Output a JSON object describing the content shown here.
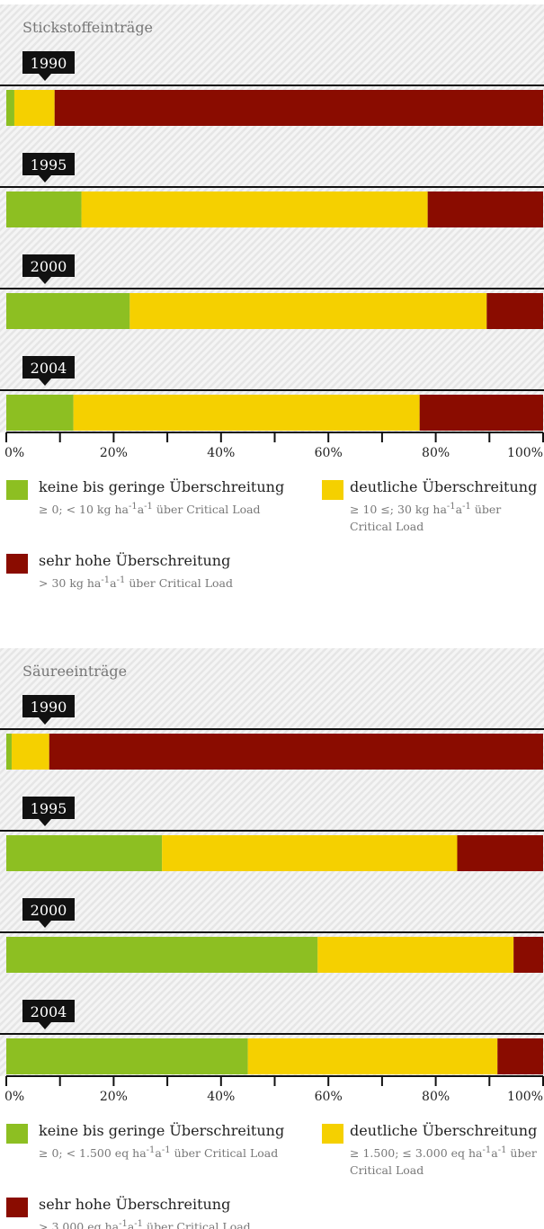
{
  "chart_data": [
    {
      "type": "bar",
      "stacked": true,
      "orientation": "horizontal",
      "title": "Stickstoffeinträge",
      "categories": [
        "1990",
        "1995",
        "2000",
        "2004"
      ],
      "series": [
        {
          "name": "keine bis geringe Überschreitung",
          "color": "#8dbf22",
          "values": [
            1.5,
            14,
            23,
            12.5
          ],
          "note": [
            "≥ 0; < 10 kg ha",
            "-1",
            "a",
            "-1",
            " über Critical Load"
          ]
        },
        {
          "name": "deutliche Überschreitung",
          "color": "#f5d000",
          "values": [
            7.5,
            64.5,
            66.5,
            64.5
          ],
          "note": [
            "≥ 10 ≤; 30 kg ha",
            "-1",
            "a",
            "-1",
            " über Critical Load"
          ]
        },
        {
          "name": "sehr hohe Überschreitung",
          "color": "#8a0c00",
          "values": [
            91,
            21.5,
            10.5,
            23
          ],
          "note": [
            "> 30 kg ha",
            "-1",
            "a",
            "-1",
            " über Critical Load"
          ]
        }
      ],
      "xlim": [
        0,
        100
      ],
      "xticks": [
        {
          "value": 0,
          "label": "0%"
        },
        {
          "value": 20,
          "label": "20%"
        },
        {
          "value": 40,
          "label": "40%"
        },
        {
          "value": 60,
          "label": "60%"
        },
        {
          "value": 80,
          "label": "80%"
        },
        {
          "value": 100,
          "label": "100%"
        }
      ],
      "xminor": [
        10,
        30,
        50,
        70,
        90
      ]
    },
    {
      "type": "bar",
      "stacked": true,
      "orientation": "horizontal",
      "title": "Säureeinträge",
      "categories": [
        "1990",
        "1995",
        "2000",
        "2004"
      ],
      "series": [
        {
          "name": "keine bis geringe Überschreitung",
          "color": "#8dbf22",
          "values": [
            1,
            29,
            58,
            45
          ],
          "note": [
            "≥ 0; < 1.500 eq ha",
            "-1",
            "a",
            "-1",
            " über Critical Load"
          ]
        },
        {
          "name": "deutliche Überschreitung",
          "color": "#f5d000",
          "values": [
            7,
            55,
            36.5,
            46.5
          ],
          "note": [
            "≥ 1.500; ≤ 3.000 eq ha",
            "-1",
            "a",
            "-1",
            " über Critical Load"
          ]
        },
        {
          "name": "sehr hohe Überschreitung",
          "color": "#8a0c00",
          "values": [
            92,
            16,
            5.5,
            8.5
          ],
          "note": [
            "> 3.000 eq ha",
            "-1",
            "a",
            "-1",
            " über Critical Load"
          ]
        }
      ],
      "xlim": [
        0,
        100
      ],
      "xticks": [
        {
          "value": 0,
          "label": "0%"
        },
        {
          "value": 20,
          "label": "20%"
        },
        {
          "value": 40,
          "label": "40%"
        },
        {
          "value": 60,
          "label": "60%"
        },
        {
          "value": 80,
          "label": "80%"
        },
        {
          "value": 100,
          "label": "100%"
        }
      ],
      "xminor": [
        10,
        30,
        50,
        70,
        90
      ]
    }
  ]
}
